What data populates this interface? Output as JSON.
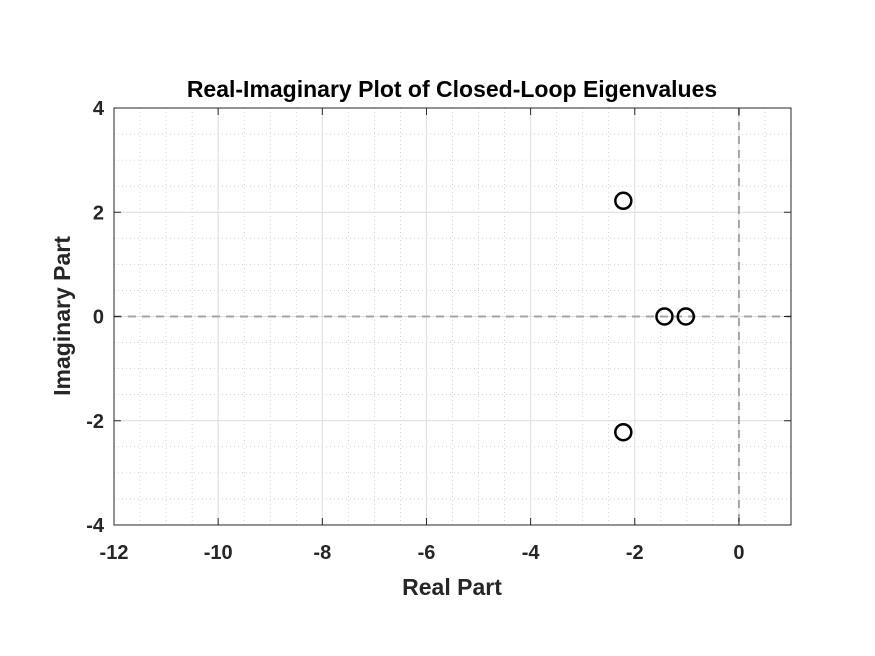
{
  "chart_data": {
    "type": "scatter",
    "title": "Real-Imaginary Plot of Closed-Loop Eigenvalues",
    "xlabel": "Real Part",
    "ylabel": "Imaginary Part",
    "xlim": [
      -12,
      1
    ],
    "ylim": [
      -4,
      4
    ],
    "xticks": [
      -12,
      -10,
      -8,
      -6,
      -4,
      -2,
      0
    ],
    "yticks": [
      -4,
      -2,
      0,
      2,
      4
    ],
    "xtick_labels": [
      "-12",
      "-10",
      "-8",
      "-6",
      "-4",
      "-2",
      "0"
    ],
    "ytick_labels": [
      "-4",
      "-2",
      "0",
      "2",
      "4"
    ],
    "grid": true,
    "minor_grid": true,
    "reference_lines": [
      {
        "orientation": "horizontal",
        "value": 0,
        "style": "dashed"
      },
      {
        "orientation": "vertical",
        "value": 0,
        "style": "dashed"
      }
    ],
    "marker": "circle-open",
    "x": [
      -2.22,
      -2.22,
      -1.43,
      -1.02
    ],
    "y": [
      2.22,
      -2.22,
      0,
      0
    ],
    "colors": {
      "marker": "#000000",
      "reference": "#a6a6a6",
      "major_grid": "#dcdcdc",
      "minor_grid": "#c8c8c8",
      "axes": "#262626"
    }
  }
}
